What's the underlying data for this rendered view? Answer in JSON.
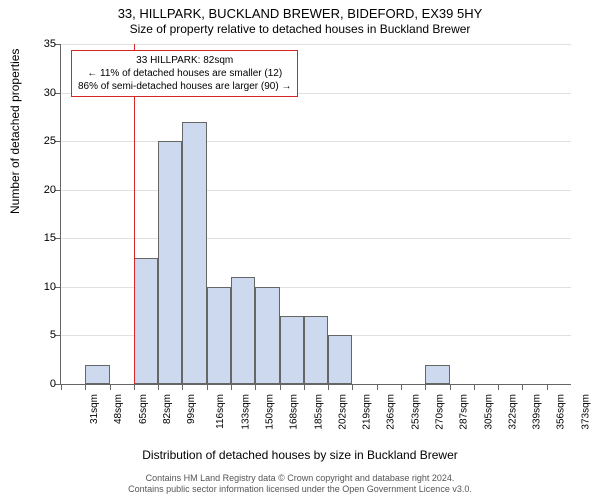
{
  "title_line1": "33, HILLPARK, BUCKLAND BREWER, BIDEFORD, EX39 5HY",
  "title_line2": "Size of property relative to detached houses in Buckland Brewer",
  "ylabel": "Number of detached properties",
  "xlabel": "Distribution of detached houses by size in Buckland Brewer",
  "footer_line1": "Contains HM Land Registry data © Crown copyright and database right 2024.",
  "footer_line2": "Contains public sector information licensed under the Open Government Licence v3.0.",
  "chart": {
    "type": "histogram",
    "ylim": [
      0,
      35
    ],
    "ytick_step": 5,
    "yticks": [
      0,
      5,
      10,
      15,
      20,
      25,
      30,
      35
    ],
    "xticks": [
      "31sqm",
      "48sqm",
      "65sqm",
      "82sqm",
      "99sqm",
      "116sqm",
      "133sqm",
      "150sqm",
      "168sqm",
      "185sqm",
      "202sqm",
      "219sqm",
      "236sqm",
      "253sqm",
      "270sqm",
      "287sqm",
      "305sqm",
      "322sqm",
      "339sqm",
      "356sqm",
      "373sqm"
    ],
    "values": [
      0,
      2,
      0,
      13,
      25,
      27,
      10,
      11,
      10,
      7,
      7,
      5,
      0,
      0,
      0,
      2,
      0,
      0,
      0,
      0,
      0
    ],
    "bar_color": "#cdd9ee",
    "bar_border": "#666666",
    "grid_color": "#e0e0e0",
    "background_color": "#ffffff",
    "marker_color": "#d62728",
    "marker_category_index": 3,
    "annotation": {
      "line1": "33 HILLPARK: 82sqm",
      "line2": "← 11% of detached houses are smaller (12)",
      "line3": "86% of semi-detached houses are larger (90) →"
    },
    "label_fontsize": 11,
    "tick_fontsize": 10
  }
}
